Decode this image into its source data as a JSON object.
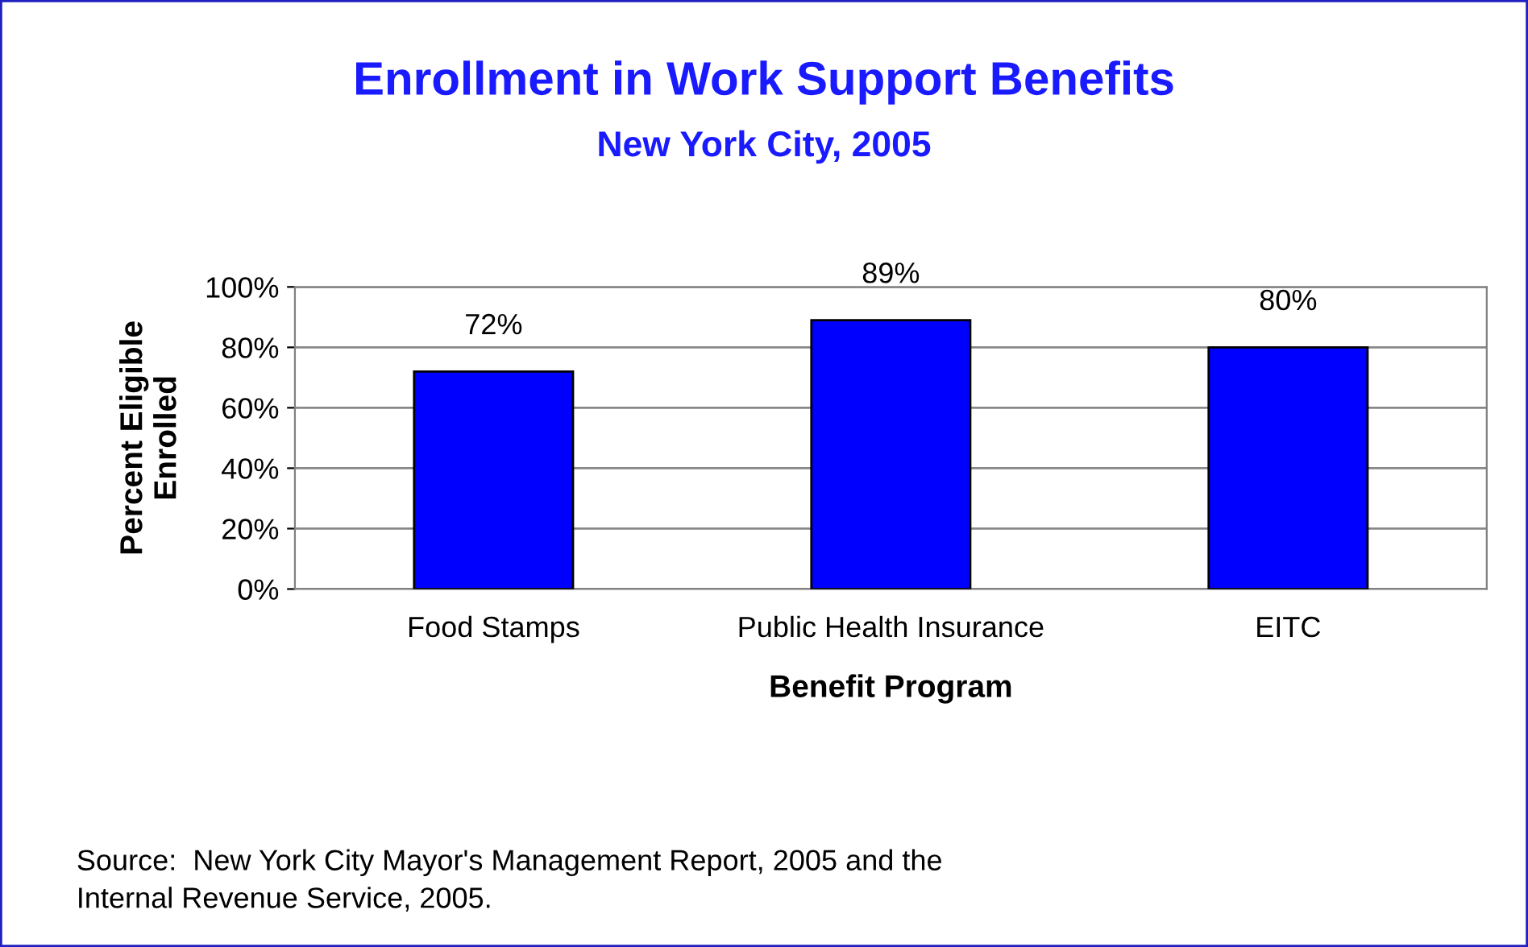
{
  "chart_data": {
    "type": "bar",
    "title": "Enrollment in Work Support Benefits",
    "subtitle": "New York City, 2005",
    "xlabel": "Benefit Program",
    "ylabel": "Percent Eligible\nEnrolled",
    "categories": [
      "Food Stamps",
      "Public Health Insurance",
      "EITC"
    ],
    "series": [
      {
        "color": "#0000ff",
        "values": [
          72,
          89,
          80
        ],
        "value_labels": [
          "72%",
          "89%",
          "80%"
        ]
      }
    ],
    "ylim": [
      0,
      100
    ],
    "yticks": [
      {
        "value": 0,
        "label": "0%"
      },
      {
        "value": 20,
        "label": "20%"
      },
      {
        "value": 40,
        "label": "40%"
      },
      {
        "value": 60,
        "label": "60%"
      },
      {
        "value": 80,
        "label": "80%"
      },
      {
        "value": 100,
        "label": "100%"
      }
    ],
    "grid": "y",
    "legend": false,
    "annotations": [
      "Source:  New York City Mayor's Management Report, 2005 and the\nInternal Revenue Service, 2005."
    ]
  }
}
